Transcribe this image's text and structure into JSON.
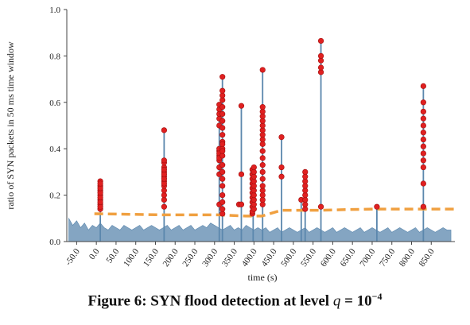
{
  "caption": {
    "prefix": "Figure 6: SYN flood detection at level ",
    "variable": "q",
    "equals": " = ",
    "base": "10",
    "exponent": "−4"
  },
  "chart_data": {
    "type": "line",
    "xlabel": "time (s)",
    "ylabel": "ratio of SYN packets in 50 ms time window",
    "xlim": [
      -75,
      910
    ],
    "ylim": [
      0,
      1.0
    ],
    "x_ticks": [
      -50,
      0,
      50,
      100,
      150,
      200,
      250,
      300,
      350,
      400,
      450,
      500,
      550,
      600,
      650,
      700,
      750,
      800,
      850
    ],
    "x_tick_labels": [
      "-50.0",
      "0.0",
      "50.0",
      "100.0",
      "150.0",
      "200.0",
      "250.0",
      "300.0",
      "350.0",
      "400.0",
      "450.0",
      "500.0",
      "550.0",
      "600.0",
      "650.0",
      "700.0",
      "750.0",
      "800.0",
      "850.0"
    ],
    "y_ticks": [
      0,
      0.2,
      0.4,
      0.6,
      0.8,
      1.0
    ],
    "y_tick_labels": [
      "0.0",
      "0.2",
      "0.4",
      "0.6",
      "0.8",
      "1.0"
    ],
    "grid": false,
    "colors": {
      "traffic": "#5b87ad",
      "threshold": "#f0a040",
      "alarm": "#e02020",
      "alarm_edge": "#a01010"
    },
    "series": [
      {
        "style": "area",
        "role": "traffic-baseline",
        "x": [
          -70,
          -60,
          -50,
          -40,
          -30,
          -20,
          -10,
          0,
          10,
          20,
          30,
          40,
          50,
          60,
          70,
          80,
          90,
          100,
          110,
          120,
          130,
          140,
          150,
          160,
          170,
          180,
          190,
          200,
          210,
          220,
          230,
          240,
          250,
          260,
          270,
          280,
          290,
          300,
          310,
          320,
          330,
          340,
          350,
          360,
          370,
          380,
          390,
          400,
          410,
          420,
          430,
          440,
          450,
          460,
          470,
          480,
          490,
          500,
          510,
          520,
          530,
          540,
          550,
          560,
          570,
          580,
          590,
          600,
          610,
          620,
          630,
          640,
          650,
          660,
          670,
          680,
          690,
          700,
          710,
          720,
          730,
          740,
          750,
          760,
          770,
          780,
          790,
          800,
          810,
          820,
          830,
          840,
          850,
          860,
          870,
          880,
          890,
          900
        ],
        "y": [
          0.1,
          0.07,
          0.09,
          0.06,
          0.08,
          0.05,
          0.07,
          0.06,
          0.08,
          0.06,
          0.05,
          0.07,
          0.06,
          0.05,
          0.07,
          0.06,
          0.05,
          0.06,
          0.07,
          0.05,
          0.06,
          0.07,
          0.06,
          0.05,
          0.06,
          0.07,
          0.05,
          0.06,
          0.07,
          0.05,
          0.06,
          0.07,
          0.05,
          0.06,
          0.07,
          0.06,
          0.08,
          0.07,
          0.06,
          0.05,
          0.06,
          0.07,
          0.05,
          0.06,
          0.05,
          0.07,
          0.06,
          0.05,
          0.06,
          0.05,
          0.06,
          0.04,
          0.05,
          0.06,
          0.04,
          0.05,
          0.06,
          0.05,
          0.04,
          0.05,
          0.06,
          0.04,
          0.05,
          0.06,
          0.05,
          0.04,
          0.05,
          0.06,
          0.04,
          0.05,
          0.06,
          0.05,
          0.04,
          0.05,
          0.06,
          0.04,
          0.05,
          0.06,
          0.05,
          0.04,
          0.05,
          0.06,
          0.04,
          0.05,
          0.06,
          0.05,
          0.04,
          0.05,
          0.06,
          0.04,
          0.05,
          0.06,
          0.05,
          0.04,
          0.05,
          0.06,
          0.05,
          0.05
        ]
      },
      {
        "style": "dashed",
        "role": "detection-threshold",
        "x": [
          -5,
          175,
          310,
          380,
          420,
          470,
          520,
          570,
          640,
          705,
          760,
          820,
          910
        ],
        "y": [
          0.12,
          0.115,
          0.115,
          0.11,
          0.11,
          0.135,
          0.135,
          0.135,
          0.138,
          0.14,
          0.14,
          0.14,
          0.14
        ]
      }
    ],
    "spikes": [
      {
        "x": 10,
        "top": 0.26
      },
      {
        "x": 172,
        "top": 0.48
      },
      {
        "x": 312,
        "top": 0.59
      },
      {
        "x": 320,
        "top": 0.71
      },
      {
        "x": 368,
        "top": 0.585
      },
      {
        "x": 398,
        "top": 0.32
      },
      {
        "x": 422,
        "top": 0.74
      },
      {
        "x": 470,
        "top": 0.45
      },
      {
        "x": 520,
        "top": 0.18
      },
      {
        "x": 530,
        "top": 0.3
      },
      {
        "x": 570,
        "top": 0.865
      },
      {
        "x": 712,
        "top": 0.15
      },
      {
        "x": 830,
        "top": 0.67
      }
    ],
    "alarms": [
      {
        "x": 10,
        "y": [
          0.14,
          0.16,
          0.18,
          0.2,
          0.22,
          0.24,
          0.26,
          0.15,
          0.17,
          0.19,
          0.21,
          0.23,
          0.25
        ]
      },
      {
        "x": 172,
        "y": [
          0.15,
          0.18,
          0.2,
          0.22,
          0.24,
          0.26,
          0.28,
          0.3,
          0.32,
          0.34,
          0.35,
          0.25,
          0.27,
          0.29,
          0.31,
          0.48
        ]
      },
      {
        "x": 312,
        "y": [
          0.16,
          0.29,
          0.32,
          0.35,
          0.37,
          0.39,
          0.4,
          0.5,
          0.53,
          0.55,
          0.57,
          0.59,
          0.38,
          0.36
        ]
      },
      {
        "x": 320,
        "y": [
          0.12,
          0.14,
          0.17,
          0.2,
          0.24,
          0.27,
          0.3,
          0.33,
          0.37,
          0.4,
          0.43,
          0.46,
          0.49,
          0.52,
          0.55,
          0.58,
          0.61,
          0.63,
          0.65,
          0.71,
          0.39,
          0.42
        ]
      },
      {
        "x": 362,
        "y": [
          0.16
        ]
      },
      {
        "x": 368,
        "y": [
          0.16,
          0.29,
          0.585
        ]
      },
      {
        "x": 396,
        "y": [
          0.12,
          0.13,
          0.15,
          0.17,
          0.19,
          0.21,
          0.23,
          0.25,
          0.27,
          0.29,
          0.31
        ]
      },
      {
        "x": 400,
        "y": [
          0.14,
          0.16,
          0.18,
          0.2,
          0.22,
          0.24,
          0.26,
          0.28,
          0.3,
          0.32
        ]
      },
      {
        "x": 422,
        "y": [
          0.16,
          0.18,
          0.2,
          0.22,
          0.24,
          0.27,
          0.3,
          0.33,
          0.36,
          0.39,
          0.42,
          0.44,
          0.46,
          0.48,
          0.5,
          0.52,
          0.54,
          0.56,
          0.58,
          0.74
        ]
      },
      {
        "x": 470,
        "y": [
          0.28,
          0.32,
          0.45
        ]
      },
      {
        "x": 520,
        "y": [
          0.18
        ]
      },
      {
        "x": 530,
        "y": [
          0.14,
          0.16,
          0.18,
          0.2,
          0.22,
          0.24,
          0.26,
          0.28,
          0.3
        ]
      },
      {
        "x": 570,
        "y": [
          0.15,
          0.73,
          0.75,
          0.78,
          0.8,
          0.865
        ]
      },
      {
        "x": 712,
        "y": [
          0.15
        ]
      },
      {
        "x": 830,
        "y": [
          0.15,
          0.25,
          0.32,
          0.35,
          0.38,
          0.41,
          0.44,
          0.47,
          0.5,
          0.53,
          0.56,
          0.6,
          0.67
        ]
      }
    ]
  }
}
